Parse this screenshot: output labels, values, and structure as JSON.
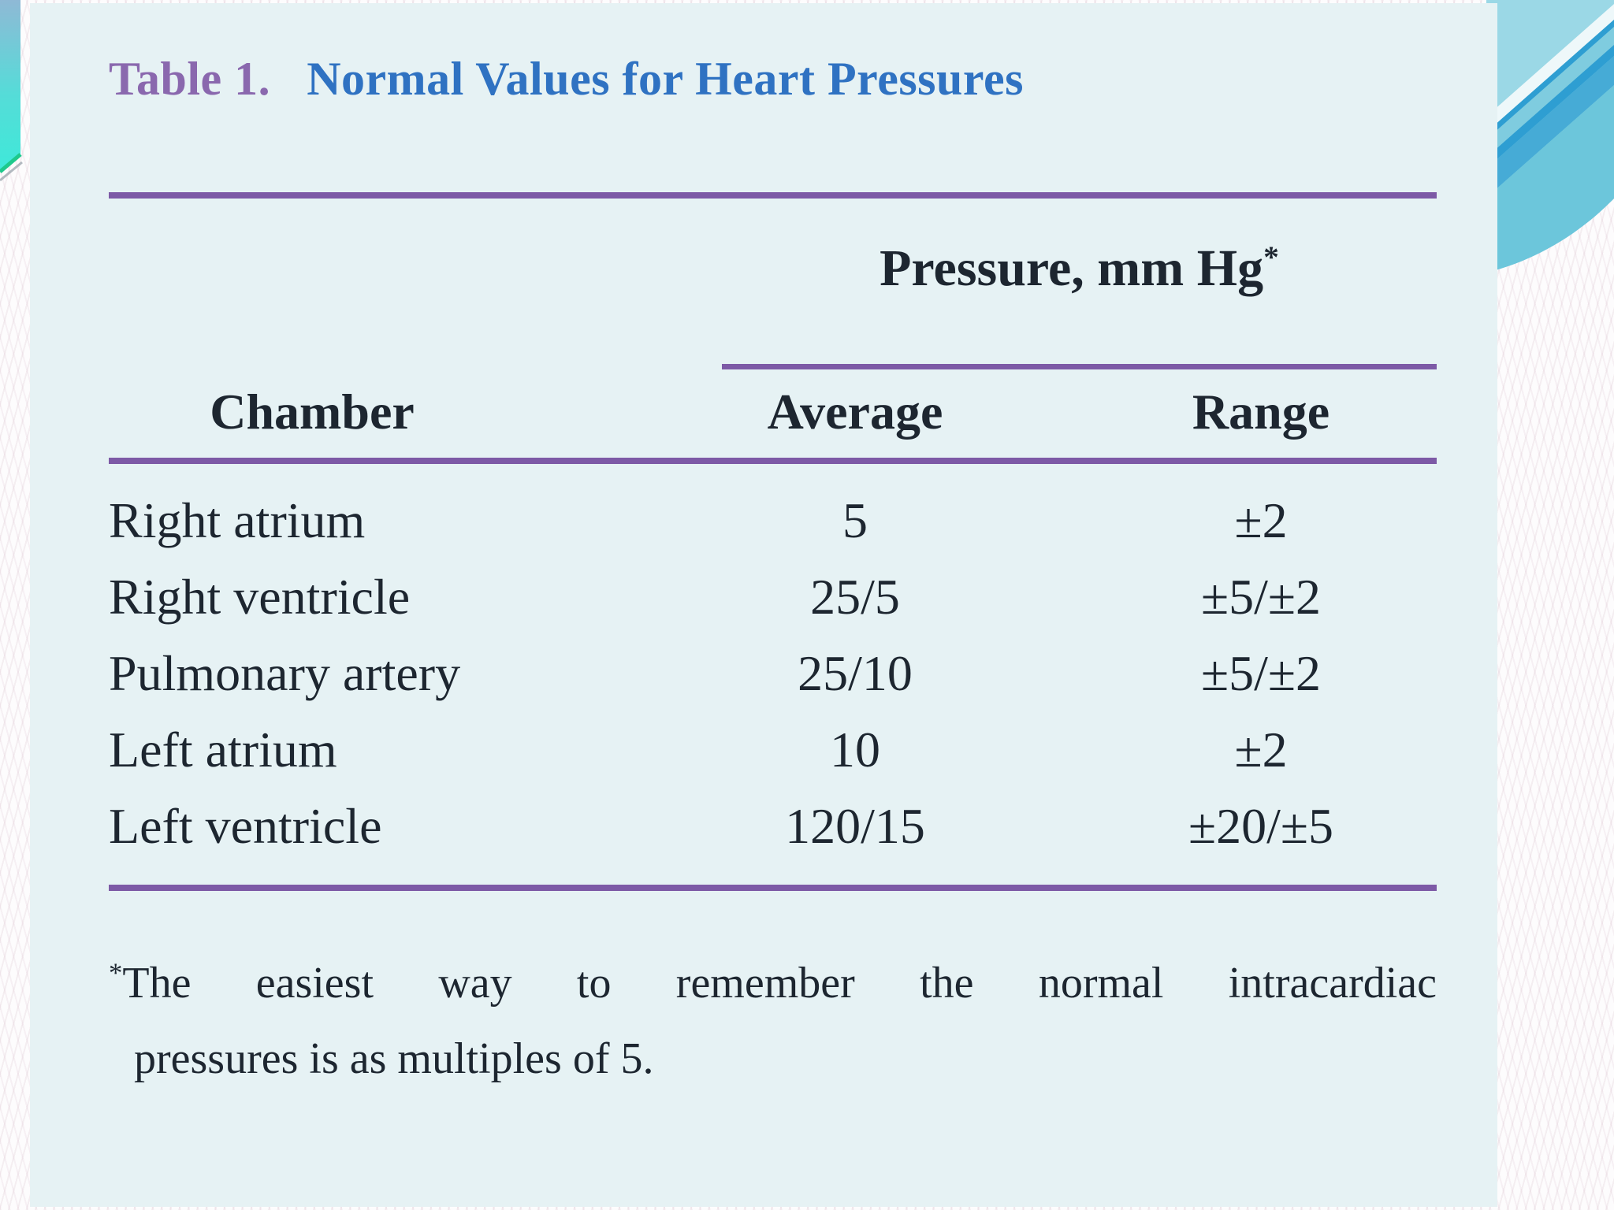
{
  "title": {
    "label": "Table 1.",
    "text": "Normal Values for Heart Pressures"
  },
  "table": {
    "group_header": {
      "text": "Pressure, mm Hg",
      "footnote_marker": "*"
    },
    "columns": [
      "Chamber",
      "Average",
      "Range"
    ],
    "rows": [
      {
        "chamber": "Right atrium",
        "average": "5",
        "range": "±2"
      },
      {
        "chamber": "Right ventricle",
        "average": "25/5",
        "range": "±5/±2"
      },
      {
        "chamber": "Pulmonary artery",
        "average": "25/10",
        "range": "±5/±2"
      },
      {
        "chamber": "Left atrium",
        "average": "10",
        "range": "±2"
      },
      {
        "chamber": "Left ventricle",
        "average": "120/15",
        "range": "±20/±5"
      }
    ],
    "footnote": {
      "marker": "*",
      "line1": "The easiest way to remember the normal intracardiac",
      "line2": "pressures is as multiples of 5."
    }
  },
  "colors": {
    "panel_bg": "#e6f2f4",
    "rule_purple": "#7d5aa6",
    "title_label": "#8a68ae",
    "title_text": "#2f72c2",
    "ink": "#1d2630",
    "swoosh_base": "#7fccdf",
    "swoosh_stripe_blue": "#2e9ed2",
    "ribbon_top": "#8fb9d6",
    "ribbon_bottom": "#3ee9d9",
    "ribbon_green_edge": "#1ec98c"
  }
}
